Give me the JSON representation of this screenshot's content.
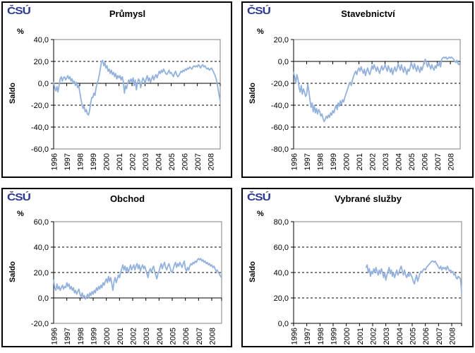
{
  "logo": {
    "text": "ČSÚ",
    "color": "#2B3990"
  },
  "chart_data": [
    {
      "type": "line",
      "title": "Průmysl",
      "unit": "%",
      "ylabel": "Saldo",
      "ylim": [
        -60,
        40
      ],
      "y_tick_values": [
        40,
        20,
        0,
        -20,
        -40,
        -60
      ],
      "y_tick_labels": [
        "40,0",
        "20,0",
        "0,0",
        "-20,0",
        "-40,0",
        "-60,0"
      ],
      "x_ticks": [
        "1996",
        "1997",
        "1998",
        "1999",
        "2000",
        "2001",
        "2002",
        "2003",
        "2004",
        "2005",
        "2006",
        "2007",
        "2008"
      ],
      "x_start": "1996-01",
      "months_total": 154,
      "start_month": 0,
      "series_color": "#93B1DD",
      "grid": "dashed-horizontal",
      "legend": "none",
      "values": [
        1,
        -4,
        -7,
        -3,
        -8,
        -2,
        4,
        6,
        2,
        5,
        6,
        3,
        5,
        7,
        4,
        6,
        2,
        4,
        0,
        2,
        -2,
        1,
        -4,
        -2,
        -8,
        -14,
        -19,
        -23,
        -21,
        -26,
        -24,
        -28,
        -29,
        -25,
        -18,
        -13,
        -13,
        -9,
        -11,
        -4,
        0,
        3,
        8,
        14,
        20,
        21,
        16,
        19,
        14,
        16,
        11,
        13,
        9,
        12,
        8,
        10,
        6,
        9,
        4,
        7,
        5,
        7,
        3,
        6,
        2,
        -9,
        -2,
        -5,
        0,
        3,
        1,
        4,
        1,
        5,
        -2,
        3,
        -6,
        0,
        4,
        2,
        -4,
        1,
        5,
        3,
        0,
        4,
        7,
        2,
        5,
        1,
        4,
        7,
        3,
        6,
        8,
        5,
        8,
        11,
        9,
        12,
        10,
        13,
        11,
        9,
        8,
        10,
        12,
        9,
        10,
        8,
        6,
        9,
        11,
        8,
        6,
        7,
        9,
        11,
        10,
        12,
        11,
        13,
        12,
        14,
        13,
        15,
        14,
        13,
        15,
        16,
        15,
        16,
        15,
        17,
        16,
        14,
        16,
        17,
        15,
        16,
        14,
        13,
        14,
        12,
        13,
        14,
        12,
        10,
        8,
        5,
        1,
        -5,
        -11,
        -16
      ]
    },
    {
      "type": "line",
      "title": "Stavebnictví",
      "unit": "%",
      "ylabel": "Saldo",
      "ylim": [
        -80,
        20
      ],
      "y_tick_values": [
        20,
        0,
        -20,
        -40,
        -60,
        -80
      ],
      "y_tick_labels": [
        "20,0",
        "0,0",
        "-20,0",
        "-40,0",
        "-60,0",
        "-80,0"
      ],
      "x_ticks": [
        "1996",
        "1997",
        "1998",
        "1999",
        "2000",
        "2001",
        "2002",
        "2003",
        "2004",
        "2005",
        "2006",
        "2007",
        "2008"
      ],
      "x_start": "1996-01",
      "months_total": 154,
      "start_month": 0,
      "series_color": "#93B1DD",
      "grid": "dashed-horizontal",
      "legend": "none",
      "values": [
        -10,
        -14,
        -20,
        -12,
        -16,
        -24,
        -28,
        -22,
        -30,
        -25,
        -28,
        -32,
        -30,
        -21,
        -27,
        -35,
        -42,
        -38,
        -46,
        -40,
        -47,
        -43,
        -48,
        -44,
        -46,
        -50,
        -48,
        -52,
        -55,
        -53,
        -50,
        -52,
        -49,
        -51,
        -47,
        -49,
        -45,
        -47,
        -43,
        -40,
        -44,
        -38,
        -41,
        -36,
        -39,
        -35,
        -37,
        -33,
        -30,
        -27,
        -24,
        -21,
        -19,
        -22,
        -17,
        -14,
        -11,
        -9,
        -12,
        -8,
        -6,
        -9,
        -5,
        -8,
        -11,
        -7,
        -13,
        -9,
        -6,
        -10,
        -12,
        -8,
        -4,
        -7,
        -3,
        -6,
        -9,
        -5,
        -8,
        -11,
        -7,
        -4,
        -8,
        -6,
        -3,
        -6,
        -9,
        -4,
        -7,
        -10,
        -6,
        -12,
        -8,
        -5,
        -9,
        -7,
        -2,
        -5,
        -8,
        -3,
        -7,
        -10,
        -5,
        -8,
        -12,
        -7,
        -9,
        -6,
        -1,
        -4,
        -7,
        -2,
        -6,
        -9,
        -4,
        -7,
        -10,
        -5,
        -8,
        -4,
        0,
        2,
        -2,
        -5,
        -1,
        -4,
        -7,
        -3,
        -6,
        -8,
        -4,
        -6,
        -2,
        -4,
        -1,
        -5,
        2,
        3,
        4,
        3,
        4,
        2,
        3,
        4,
        3,
        4,
        3,
        2,
        0,
        -1,
        1,
        -2,
        -3,
        -1
      ]
    },
    {
      "type": "line",
      "title": "Obchod",
      "unit": "%",
      "ylabel": "Saldo",
      "ylim": [
        -20,
        60
      ],
      "y_tick_values": [
        60,
        40,
        20,
        0,
        -20
      ],
      "y_tick_labels": [
        "60,0",
        "40,0",
        "20,0",
        "0,0",
        "-20,0"
      ],
      "x_ticks": [
        "1996",
        "1997",
        "1998",
        "1999",
        "2000",
        "2001",
        "2002",
        "2003",
        "2004",
        "2005",
        "2006",
        "2007",
        "2008"
      ],
      "x_start": "1996-01",
      "months_total": 154,
      "start_month": 0,
      "series_color": "#93B1DD",
      "grid": "dashed-horizontal",
      "legend": "none",
      "values": [
        14,
        8,
        6,
        11,
        7,
        9,
        6,
        8,
        10,
        7,
        9,
        8,
        12,
        9,
        11,
        7,
        9,
        6,
        8,
        4,
        6,
        3,
        5,
        7,
        3,
        1,
        4,
        0,
        2,
        -1,
        1,
        3,
        0,
        4,
        2,
        5,
        3,
        6,
        4,
        8,
        6,
        9,
        7,
        10,
        8,
        12,
        10,
        13,
        15,
        12,
        17,
        13,
        16,
        11,
        6,
        13,
        16,
        12,
        15,
        18,
        16,
        20,
        23,
        26,
        22,
        25,
        21,
        24,
        20,
        23,
        26,
        22,
        24,
        26,
        22,
        25,
        27,
        23,
        26,
        21,
        24,
        26,
        23,
        25,
        22,
        19,
        16,
        21,
        23,
        20,
        23,
        25,
        21,
        18,
        15,
        19,
        21,
        24,
        27,
        23,
        26,
        28,
        24,
        22,
        25,
        27,
        24,
        21,
        20,
        23,
        26,
        28,
        24,
        27,
        25,
        28,
        26,
        24,
        27,
        29,
        23,
        21,
        24,
        22,
        25,
        27,
        26,
        28,
        27,
        29,
        28,
        30,
        31,
        30,
        31,
        29,
        30,
        28,
        29,
        27,
        28,
        26,
        27,
        25,
        26,
        24,
        25,
        23,
        21,
        22,
        20,
        19,
        17,
        16
      ]
    },
    {
      "type": "line",
      "title": "Vybrané služby",
      "unit": "%",
      "ylabel": "Saldo",
      "ylim": [
        0,
        80
      ],
      "y_tick_values": [
        80,
        60,
        40,
        20,
        0
      ],
      "y_tick_labels": [
        "80,0",
        "60,0",
        "40,0",
        "20,0",
        "0,0"
      ],
      "x_ticks": [
        "1996",
        "1997",
        "1998",
        "1999",
        "2000",
        "2001",
        "2002",
        "2003",
        "2004",
        "2005",
        "2006",
        "2007",
        "2008"
      ],
      "x_start": "2001-07",
      "months_total": 154,
      "start_month": 66,
      "series_color": "#93B1DD",
      "grid": "dashed-horizontal",
      "legend": "none",
      "values": [
        44,
        46,
        40,
        43,
        37,
        41,
        39,
        43,
        40,
        44,
        41,
        38,
        42,
        39,
        43,
        40,
        36,
        40,
        34,
        38,
        41,
        44,
        39,
        42,
        37,
        40,
        36,
        39,
        42,
        38,
        40,
        43,
        45,
        41,
        38,
        42,
        38,
        36,
        39,
        37,
        40,
        38,
        36,
        33,
        31,
        35,
        38,
        33,
        36,
        39,
        41,
        40,
        42,
        43,
        42,
        44,
        45,
        46,
        47,
        48,
        49,
        49,
        48,
        49,
        47,
        46,
        44,
        43,
        45,
        42,
        44,
        43,
        44,
        42,
        45,
        43,
        41,
        42,
        40,
        41,
        38,
        39,
        36,
        35,
        37,
        36,
        35,
        25
      ]
    }
  ]
}
